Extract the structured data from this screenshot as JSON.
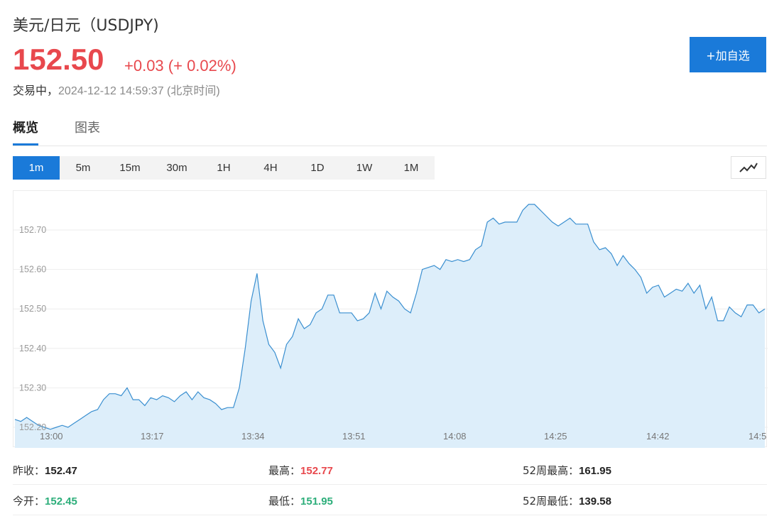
{
  "header": {
    "title": "美元/日元（USDJPY)",
    "price": "152.50",
    "change": "+0.03 (+ 0.02%)",
    "status": "交易中，",
    "timestamp": "2024-12-12 14:59:37 (北京时间)",
    "add_button": "+加自选"
  },
  "tabs": [
    {
      "label": "概览",
      "active": true
    },
    {
      "label": "图表",
      "active": false
    }
  ],
  "periods": [
    "1m",
    "5m",
    "15m",
    "30m",
    "1H",
    "4H",
    "1D",
    "1W",
    "1M"
  ],
  "active_period": "1m",
  "chart_type_icon": "line-chart-icon",
  "chart_data": {
    "type": "area",
    "y_ticks": [
      "152.70",
      "152.60",
      "152.50",
      "152.40",
      "152.30",
      "152.20"
    ],
    "x_ticks": [
      "13:00",
      "13:17",
      "13:34",
      "13:51",
      "14:08",
      "14:25",
      "14:42",
      "14:5"
    ],
    "ylim": [
      152.165,
      152.79
    ],
    "color": "#3a8fd0",
    "fill": "#ddeefa",
    "values": [
      152.22,
      152.215,
      152.225,
      152.215,
      152.205,
      152.2,
      152.195,
      152.2,
      152.205,
      152.2,
      152.21,
      152.22,
      152.23,
      152.24,
      152.245,
      152.27,
      152.285,
      152.285,
      152.28,
      152.3,
      152.27,
      152.27,
      152.255,
      152.275,
      152.27,
      152.28,
      152.275,
      152.265,
      152.28,
      152.29,
      152.27,
      152.29,
      152.275,
      152.27,
      152.26,
      152.245,
      152.25,
      152.25,
      152.3,
      152.4,
      152.52,
      152.59,
      152.47,
      152.41,
      152.39,
      152.35,
      152.41,
      152.43,
      152.475,
      152.45,
      152.46,
      152.49,
      152.5,
      152.535,
      152.535,
      152.49,
      152.49,
      152.49,
      152.47,
      152.475,
      152.49,
      152.54,
      152.5,
      152.545,
      152.53,
      152.52,
      152.5,
      152.49,
      152.54,
      152.6,
      152.605,
      152.61,
      152.6,
      152.625,
      152.62,
      152.625,
      152.62,
      152.625,
      152.65,
      152.66,
      152.72,
      152.73,
      152.715,
      152.72,
      152.72,
      152.72,
      152.75,
      152.765,
      152.765,
      152.75,
      152.735,
      152.72,
      152.71,
      152.72,
      152.73,
      152.715,
      152.715,
      152.715,
      152.67,
      152.65,
      152.655,
      152.64,
      152.61,
      152.635,
      152.615,
      152.6,
      152.58,
      152.54,
      152.555,
      152.56,
      152.53,
      152.54,
      152.55,
      152.545,
      152.565,
      152.54,
      152.56,
      152.5,
      152.53,
      152.47,
      152.47,
      152.505,
      152.49,
      152.48,
      152.51,
      152.51,
      152.49,
      152.5
    ]
  },
  "stats": {
    "row1": [
      {
        "label": "昨收：",
        "value": "152.47",
        "tone": "black"
      },
      {
        "label": "最高：",
        "value": "152.77",
        "tone": "red"
      },
      {
        "label": "52周最高：",
        "value": "161.95",
        "tone": "black"
      }
    ],
    "row2": [
      {
        "label": "今开：",
        "value": "152.45",
        "tone": "green"
      },
      {
        "label": "最低：",
        "value": "151.95",
        "tone": "green"
      },
      {
        "label": "52周最低：",
        "value": "139.58",
        "tone": "black"
      }
    ]
  }
}
